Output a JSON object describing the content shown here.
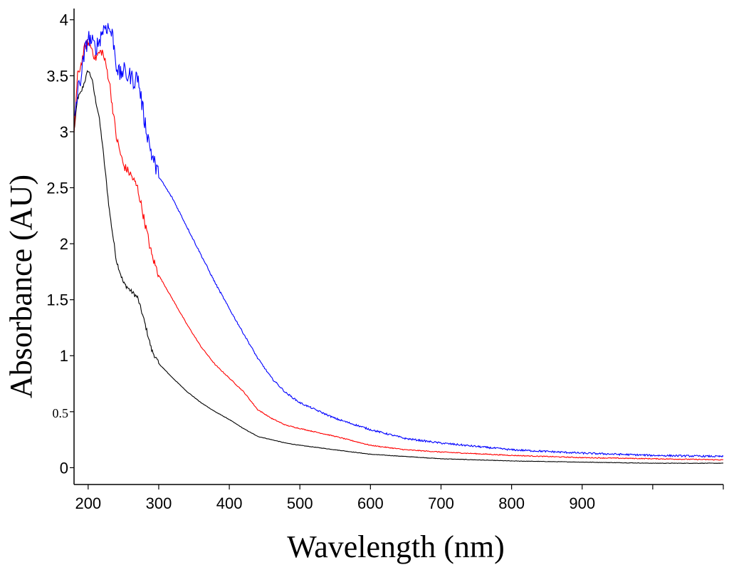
{
  "chart_data": {
    "type": "line",
    "title": "",
    "xlabel": "Wavelength (nm)",
    "ylabel": "Absorbance (AU)",
    "xlim": [
      180,
      1100
    ],
    "ylim": [
      -0.15,
      4.1
    ],
    "x_ticks": [
      200,
      300,
      400,
      500,
      600,
      700,
      800,
      900
    ],
    "x_minor_ticks": [
      1000,
      1100
    ],
    "y_ticks": [
      {
        "value": 0,
        "label": "0"
      },
      {
        "value": 0.5,
        "label": "0.5"
      },
      {
        "value": 1,
        "label": "1"
      },
      {
        "value": 1.5,
        "label": "1.5"
      },
      {
        "value": 2,
        "label": "2"
      },
      {
        "value": 2.5,
        "label": "2.5"
      },
      {
        "value": 3,
        "label": "3"
      },
      {
        "value": 3.5,
        "label": "3.5"
      },
      {
        "value": 4,
        "label": "4"
      }
    ],
    "grid": false,
    "legend": "none",
    "series": [
      {
        "name": "black",
        "color": "#000000",
        "noise": 0.02,
        "x": [
          180,
          185,
          190,
          195,
          200,
          205,
          210,
          215,
          220,
          225,
          230,
          240,
          250,
          260,
          270,
          280,
          290,
          300,
          320,
          340,
          360,
          380,
          400,
          420,
          440,
          460,
          480,
          500,
          550,
          600,
          650,
          700,
          800,
          900,
          1000,
          1100
        ],
        "values": [
          3.0,
          3.3,
          3.35,
          3.45,
          3.55,
          3.48,
          3.3,
          3.15,
          2.9,
          2.6,
          2.3,
          1.85,
          1.65,
          1.58,
          1.52,
          1.3,
          1.05,
          0.93,
          0.8,
          0.68,
          0.58,
          0.5,
          0.43,
          0.35,
          0.28,
          0.25,
          0.22,
          0.2,
          0.16,
          0.12,
          0.1,
          0.08,
          0.06,
          0.05,
          0.04,
          0.04
        ]
      },
      {
        "name": "red",
        "color": "#ff0000",
        "noise": 0.04,
        "x": [
          180,
          185,
          190,
          195,
          200,
          205,
          210,
          215,
          220,
          225,
          230,
          235,
          240,
          250,
          260,
          270,
          280,
          290,
          300,
          320,
          340,
          360,
          380,
          400,
          420,
          440,
          460,
          480,
          500,
          550,
          600,
          650,
          700,
          800,
          900,
          1000,
          1100
        ],
        "values": [
          3.0,
          3.5,
          3.6,
          3.75,
          3.8,
          3.75,
          3.65,
          3.7,
          3.72,
          3.6,
          3.45,
          3.2,
          2.95,
          2.7,
          2.62,
          2.5,
          2.2,
          1.9,
          1.72,
          1.5,
          1.28,
          1.08,
          0.92,
          0.8,
          0.68,
          0.52,
          0.44,
          0.38,
          0.35,
          0.28,
          0.2,
          0.16,
          0.14,
          0.11,
          0.09,
          0.08,
          0.07
        ]
      },
      {
        "name": "blue",
        "color": "#0000ff",
        "noise": 0.08,
        "x": [
          180,
          185,
          190,
          195,
          200,
          205,
          210,
          215,
          220,
          225,
          230,
          235,
          240,
          245,
          250,
          255,
          260,
          265,
          270,
          275,
          280,
          290,
          300,
          320,
          340,
          360,
          380,
          400,
          420,
          440,
          460,
          480,
          500,
          550,
          600,
          650,
          700,
          800,
          900,
          1000,
          1100
        ],
        "values": [
          3.1,
          3.35,
          3.5,
          3.7,
          3.85,
          3.8,
          3.75,
          3.8,
          3.9,
          3.95,
          3.92,
          3.85,
          3.6,
          3.5,
          3.55,
          3.5,
          3.5,
          3.45,
          3.5,
          3.3,
          3.1,
          2.8,
          2.6,
          2.4,
          2.15,
          1.9,
          1.65,
          1.42,
          1.2,
          0.98,
          0.8,
          0.67,
          0.58,
          0.44,
          0.34,
          0.26,
          0.22,
          0.16,
          0.13,
          0.11,
          0.1
        ]
      }
    ]
  }
}
